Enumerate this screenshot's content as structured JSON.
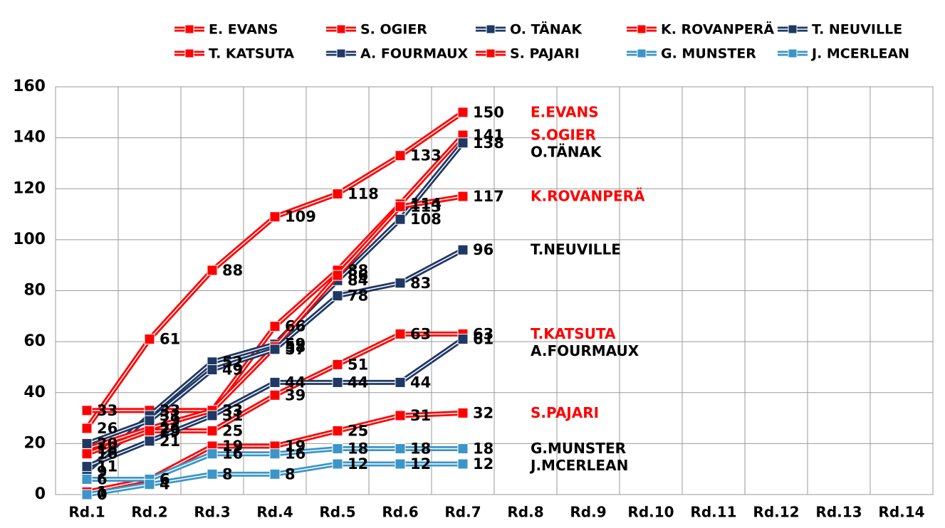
{
  "chart_data": {
    "type": "line",
    "categories": [
      "Rd.1",
      "Rd.2",
      "Rd.3",
      "Rd.4",
      "Rd.5",
      "Rd.6",
      "Rd.7",
      "Rd.8",
      "Rd.9",
      "Rd.10",
      "Rd.11",
      "Rd.12",
      "Rd.13",
      "Rd.14"
    ],
    "ylim": [
      0,
      160
    ],
    "yticks": [
      0,
      20,
      40,
      60,
      80,
      100,
      120,
      140,
      160
    ],
    "grid": true,
    "legend": "top",
    "series": [
      {
        "name": "E. EVANS",
        "label": "E.EVANS",
        "color": "#ff0000",
        "label_color": "#ff0000",
        "values": [
          26,
          61,
          88,
          109,
          118,
          133,
          150,
          null,
          null,
          null,
          null,
          null,
          null,
          null
        ]
      },
      {
        "name": "S. OGIER",
        "label": "S.OGIER",
        "color": "#ff0000",
        "label_color": "#ff0000",
        "values": [
          33,
          33,
          33,
          66,
          88,
          114,
          141,
          null,
          null,
          null,
          null,
          null,
          null,
          null
        ]
      },
      {
        "name": "O. TÄNAK",
        "label": "O.TÄNAK",
        "color": "#1f3864",
        "label_color": "#000000",
        "values": [
          9,
          31,
          52,
          59,
          84,
          108,
          138,
          null,
          null,
          null,
          null,
          null,
          null,
          null
        ]
      },
      {
        "name": "K. ROVANPERÄ",
        "label": "K.ROVANPERÄ",
        "color": "#ff0000",
        "label_color": "#ff0000",
        "values": [
          18,
          26,
          33,
          58,
          86,
          113,
          117,
          null,
          null,
          null,
          null,
          null,
          null,
          null
        ]
      },
      {
        "name": "T. NEUVILLE",
        "label": "T.NEUVILLE",
        "color": "#1f3864",
        "label_color": "#000000",
        "values": [
          20,
          29,
          49,
          57,
          78,
          83,
          96,
          null,
          null,
          null,
          null,
          null,
          null,
          null
        ]
      },
      {
        "name": "T. KATSUTA",
        "label": "T.KATSUTA",
        "color": "#ff0000",
        "label_color": "#ff0000",
        "values": [
          16,
          25,
          25,
          39,
          51,
          63,
          63,
          null,
          null,
          null,
          null,
          null,
          null,
          null
        ]
      },
      {
        "name": "A. FOURMAUX",
        "label": "A.FOURMAUX",
        "color": "#1f3864",
        "label_color": "#000000",
        "values": [
          11,
          21,
          31,
          44,
          44,
          44,
          61,
          null,
          null,
          null,
          null,
          null,
          null,
          null
        ]
      },
      {
        "name": "S. PAJARI",
        "label": "S.PAJARI",
        "color": "#ff0000",
        "label_color": "#ff0000",
        "values": [
          1,
          6,
          19,
          19,
          25,
          31,
          32,
          null,
          null,
          null,
          null,
          null,
          null,
          null
        ]
      },
      {
        "name": "G. MUNSTER",
        "label": "G.MUNSTER",
        "color": "#3b95c8",
        "label_color": "#000000",
        "values": [
          6,
          6,
          16,
          16,
          18,
          18,
          18,
          null,
          null,
          null,
          null,
          null,
          null,
          null
        ]
      },
      {
        "name": "J. MCERLEAN",
        "label": "J.MCERLEAN",
        "color": "#3b95c8",
        "label_color": "#000000",
        "values": [
          0,
          4,
          8,
          8,
          12,
          12,
          12,
          null,
          null,
          null,
          null,
          null,
          null,
          null
        ]
      }
    ]
  }
}
